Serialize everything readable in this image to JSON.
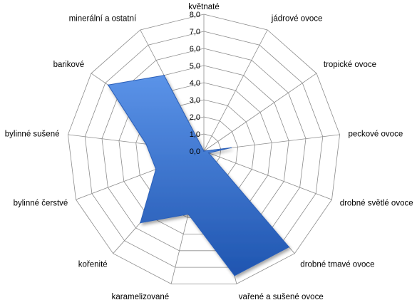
{
  "chart_data": {
    "type": "radar",
    "categories": [
      "květnaté",
      "jádrové ovoce",
      "tropické ovoce",
      "peckové ovoce",
      "drobné světlé ovoce",
      "drobné tmavé ovoce",
      "vařené a sušené ovoce",
      "karamelizované",
      "kořenité",
      "bylinné čerstvé",
      "bylinné sušené",
      "barikové",
      "minerální a ostatní"
    ],
    "series": [
      {
        "values": [
          0.0,
          0.0,
          0.0,
          1.6,
          0.3,
          7.5,
          7.5,
          3.8,
          5.6,
          3.0,
          3.4,
          6.8,
          5.0
        ]
      }
    ],
    "ylim": [
      0,
      8
    ],
    "ticks": [
      "0,0",
      "1,0",
      "2,0",
      "3,0",
      "4,0",
      "5,0",
      "6,0",
      "7,0",
      "8,0"
    ],
    "grid": true,
    "colors": {
      "fill": "#3c78d8",
      "fill_light": "#5b93e8",
      "fill_dark": "#1f55b0",
      "stroke": "#2b5fb8",
      "grid": "#8c8c8c"
    }
  }
}
